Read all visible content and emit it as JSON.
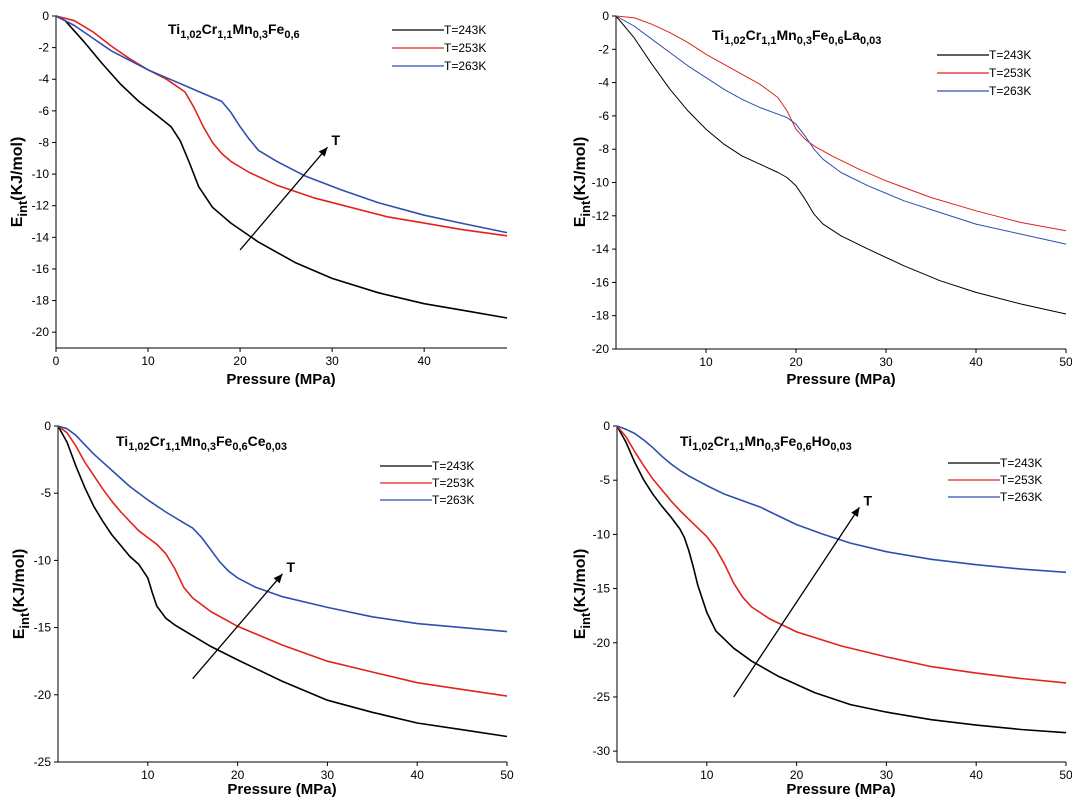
{
  "chart_data": [
    {
      "type": "line",
      "title_parts": [
        {
          "t": "Ti"
        },
        {
          "t": "1,02",
          "sub": true
        },
        {
          "t": "Cr"
        },
        {
          "t": "1,1",
          "sub": true
        },
        {
          "t": "Mn"
        },
        {
          "t": "0,3",
          "sub": true
        },
        {
          "t": "Fe"
        },
        {
          "t": "0,6",
          "sub": true
        }
      ],
      "xlabel": "Pressure (MPa)",
      "ylabel_main": "E",
      "ylabel_sub": "int",
      "ylabel_tail": "(KJ/mol)",
      "xlim": [
        0,
        49
      ],
      "ylim": [
        -21,
        0
      ],
      "xticks": [
        0,
        10,
        20,
        30,
        40
      ],
      "yticks": [
        0,
        -2,
        -4,
        -6,
        -8,
        -10,
        -12,
        -14,
        -16,
        -18,
        -20
      ],
      "arrow": {
        "from": [
          20,
          -14.8
        ],
        "to": [
          29.5,
          -8.3
        ],
        "label": "T"
      },
      "series": [
        {
          "name": "T=243K",
          "color": "#000000",
          "x": [
            0,
            1,
            3,
            5,
            7,
            9,
            11,
            12.5,
            13.5,
            14.5,
            15.5,
            17,
            19,
            22,
            26,
            30,
            35,
            40,
            45,
            49
          ],
          "y": [
            0,
            -0.3,
            -1.6,
            -3.0,
            -4.3,
            -5.4,
            -6.3,
            -7.0,
            -7.9,
            -9.3,
            -10.8,
            -12.1,
            -13.1,
            -14.3,
            -15.6,
            -16.6,
            -17.5,
            -18.2,
            -18.7,
            -19.1
          ]
        },
        {
          "name": "T=253K",
          "color": "#e0241c",
          "x": [
            0,
            2,
            4,
            6,
            8,
            10,
            12,
            14,
            15,
            16,
            17,
            18,
            19,
            21,
            24,
            28,
            32,
            36,
            40,
            44,
            49
          ],
          "y": [
            0,
            -0.3,
            -1.0,
            -1.9,
            -2.7,
            -3.4,
            -4.0,
            -4.8,
            -5.8,
            -7.0,
            -8.0,
            -8.7,
            -9.2,
            -9.9,
            -10.7,
            -11.5,
            -12.1,
            -12.7,
            -13.1,
            -13.5,
            -13.9
          ]
        },
        {
          "name": "T=263K",
          "color": "#2e4fb0",
          "x": [
            0,
            2,
            4,
            6,
            8,
            10,
            12,
            14,
            16,
            18,
            19,
            20,
            21,
            22,
            24,
            27,
            31,
            35,
            40,
            44,
            49
          ],
          "y": [
            0,
            -0.6,
            -1.4,
            -2.2,
            -2.8,
            -3.4,
            -3.9,
            -4.4,
            -4.9,
            -5.4,
            -6.1,
            -7.0,
            -7.8,
            -8.5,
            -9.2,
            -10.1,
            -11.0,
            -11.8,
            -12.6,
            -13.1,
            -13.7
          ]
        }
      ]
    },
    {
      "type": "line",
      "title_parts": [
        {
          "t": "Ti"
        },
        {
          "t": "1,02",
          "sub": true
        },
        {
          "t": "Cr"
        },
        {
          "t": "1,1",
          "sub": true
        },
        {
          "t": "Mn"
        },
        {
          "t": "0,3",
          "sub": true
        },
        {
          "t": "Fe"
        },
        {
          "t": "0,6",
          "sub": true
        },
        {
          "t": "La"
        },
        {
          "t": "0,03",
          "sub": true
        }
      ],
      "xlabel": "Pressure (MPa)",
      "ylabel_main": "E",
      "ylabel_sub": "int",
      "ylabel_tail": "(KJ/mol)",
      "xlim": [
        0,
        50
      ],
      "ylim": [
        -20,
        0
      ],
      "xticks": [
        10,
        20,
        30,
        40,
        50
      ],
      "yticks": [
        0,
        -2,
        -4,
        -6,
        -8,
        -10,
        -12,
        -14,
        -16,
        -18,
        -20
      ],
      "series": [
        {
          "name": "T=243K",
          "color": "#000000",
          "x": [
            0,
            2,
            4,
            6,
            8,
            10,
            12,
            14,
            16,
            18,
            19,
            20,
            21,
            22,
            23,
            25,
            28,
            32,
            36,
            40,
            45,
            50
          ],
          "y": [
            0,
            -1.3,
            -2.9,
            -4.4,
            -5.7,
            -6.8,
            -7.7,
            -8.4,
            -8.9,
            -9.4,
            -9.7,
            -10.2,
            -11.0,
            -11.9,
            -12.5,
            -13.2,
            -14.0,
            -15.0,
            -15.9,
            -16.6,
            -17.3,
            -17.9
          ]
        },
        {
          "name": "T=253K",
          "color": "#e0241c",
          "x": [
            0,
            2,
            4,
            6,
            8,
            10,
            12,
            14,
            16,
            17,
            18,
            19,
            20,
            21,
            22,
            24,
            27,
            30,
            35,
            40,
            45,
            50
          ],
          "y": [
            0,
            -0.1,
            -0.5,
            -1.0,
            -1.6,
            -2.3,
            -2.9,
            -3.5,
            -4.1,
            -4.5,
            -4.9,
            -5.7,
            -6.8,
            -7.4,
            -7.8,
            -8.4,
            -9.2,
            -9.9,
            -10.9,
            -11.7,
            -12.4,
            -12.9
          ]
        },
        {
          "name": "T=263K",
          "color": "#2e4fb0",
          "x": [
            0,
            2,
            4,
            6,
            8,
            10,
            12,
            14,
            16,
            18,
            19,
            20,
            21,
            22,
            23,
            25,
            28,
            32,
            36,
            40,
            45,
            50
          ],
          "y": [
            0,
            -0.6,
            -1.4,
            -2.2,
            -3.0,
            -3.7,
            -4.4,
            -5.0,
            -5.5,
            -5.9,
            -6.1,
            -6.5,
            -7.2,
            -8.0,
            -8.6,
            -9.4,
            -10.2,
            -11.1,
            -11.8,
            -12.5,
            -13.1,
            -13.7
          ]
        }
      ]
    },
    {
      "type": "line",
      "title_parts": [
        {
          "t": "Ti"
        },
        {
          "t": "1,02",
          "sub": true
        },
        {
          "t": "Cr"
        },
        {
          "t": "1,1",
          "sub": true
        },
        {
          "t": "Mn"
        },
        {
          "t": "0,3",
          "sub": true
        },
        {
          "t": "Fe"
        },
        {
          "t": "0,6",
          "sub": true
        },
        {
          "t": "Ce"
        },
        {
          "t": "0,03",
          "sub": true
        }
      ],
      "xlabel": "Pressure (MPa)",
      "ylabel_main": "E",
      "ylabel_sub": "int",
      "ylabel_tail": "(KJ/mol)",
      "xlim": [
        0,
        50
      ],
      "ylim": [
        -25,
        0
      ],
      "xticks": [
        10,
        20,
        30,
        40,
        50
      ],
      "yticks": [
        0,
        -5,
        -10,
        -15,
        -20,
        -25
      ],
      "arrow": {
        "from": [
          15,
          -18.8
        ],
        "to": [
          25,
          -11
        ],
        "label": "T"
      },
      "series": [
        {
          "name": "T=243K",
          "color": "#000000",
          "x": [
            0,
            1,
            2,
            3,
            4,
            5,
            6,
            7,
            8,
            9,
            9.5,
            10,
            10.5,
            11,
            12,
            13,
            15,
            17,
            20,
            25,
            30,
            35,
            40,
            45,
            50
          ],
          "y": [
            0,
            -1.2,
            -3.0,
            -4.6,
            -6.0,
            -7.1,
            -8.1,
            -8.9,
            -9.7,
            -10.3,
            -10.8,
            -11.3,
            -12.4,
            -13.4,
            -14.3,
            -14.8,
            -15.6,
            -16.4,
            -17.4,
            -19.0,
            -20.4,
            -21.3,
            -22.1,
            -22.6,
            -23.1
          ]
        },
        {
          "name": "T=253K",
          "color": "#e0241c",
          "x": [
            0,
            1,
            2,
            3,
            4,
            5,
            6,
            7,
            8,
            9,
            10,
            11,
            12,
            13,
            14,
            15,
            17,
            20,
            25,
            30,
            35,
            40,
            45,
            50
          ],
          "y": [
            0,
            -0.5,
            -1.5,
            -2.7,
            -3.7,
            -4.7,
            -5.6,
            -6.4,
            -7.1,
            -7.8,
            -8.3,
            -8.8,
            -9.5,
            -10.6,
            -12.0,
            -12.8,
            -13.8,
            -14.9,
            -16.3,
            -17.5,
            -18.3,
            -19.1,
            -19.6,
            -20.1
          ]
        },
        {
          "name": "T=263K",
          "color": "#2e4fb0",
          "x": [
            0,
            1,
            2,
            3,
            4,
            6,
            8,
            10,
            12,
            14,
            15,
            16,
            17,
            18,
            19,
            20,
            22,
            25,
            30,
            35,
            40,
            45,
            50
          ],
          "y": [
            0,
            -0.2,
            -0.7,
            -1.4,
            -2.1,
            -3.3,
            -4.5,
            -5.5,
            -6.4,
            -7.2,
            -7.6,
            -8.3,
            -9.2,
            -10.1,
            -10.8,
            -11.3,
            -12.0,
            -12.7,
            -13.5,
            -14.2,
            -14.7,
            -15.0,
            -15.3
          ]
        }
      ],
      "legend_names_only": true
    },
    {
      "type": "line",
      "title_parts": [
        {
          "t": "Ti"
        },
        {
          "t": "1,02",
          "sub": true
        },
        {
          "t": "Cr"
        },
        {
          "t": "1,1",
          "sub": true
        },
        {
          "t": "Mn"
        },
        {
          "t": "0,3",
          "sub": true
        },
        {
          "t": "Fe"
        },
        {
          "t": "0,6",
          "sub": true
        },
        {
          "t": "Ho"
        },
        {
          "t": "0,03",
          "sub": true
        }
      ],
      "xlabel": "Pressure (MPa)",
      "ylabel_main": "E",
      "ylabel_sub": "int",
      "ylabel_tail": "(KJ/mol)",
      "xlim": [
        0,
        50
      ],
      "ylim": [
        -31,
        0
      ],
      "xticks": [
        10,
        20,
        30,
        40,
        50
      ],
      "yticks": [
        0,
        -5,
        -10,
        -15,
        -20,
        -25,
        -30
      ],
      "arrow": {
        "from": [
          13,
          -25
        ],
        "to": [
          27,
          -7.5
        ],
        "label": "T"
      },
      "series": [
        {
          "name": "T=243K",
          "color": "#000000",
          "x": [
            0,
            1,
            2,
            3,
            4,
            5,
            6,
            7,
            7.5,
            8,
            8.5,
            9,
            10,
            11,
            13,
            15,
            18,
            22,
            26,
            30,
            35,
            40,
            45,
            50
          ],
          "y": [
            0,
            -1.5,
            -3.4,
            -5.0,
            -6.3,
            -7.4,
            -8.4,
            -9.5,
            -10.3,
            -11.5,
            -13.0,
            -14.7,
            -17.2,
            -18.9,
            -20.5,
            -21.7,
            -23.1,
            -24.6,
            -25.7,
            -26.4,
            -27.1,
            -27.6,
            -28.0,
            -28.3
          ]
        },
        {
          "name": "T=253K",
          "color": "#e0241c",
          "x": [
            0,
            1,
            2,
            3,
            4,
            5,
            6,
            7,
            8,
            9,
            10,
            11,
            12,
            13,
            14,
            15,
            17,
            20,
            25,
            30,
            35,
            40,
            45,
            50
          ],
          "y": [
            0,
            -1.0,
            -2.4,
            -3.7,
            -4.9,
            -5.9,
            -6.9,
            -7.8,
            -8.6,
            -9.4,
            -10.2,
            -11.3,
            -12.8,
            -14.5,
            -15.8,
            -16.7,
            -17.8,
            -19.0,
            -20.3,
            -21.3,
            -22.2,
            -22.8,
            -23.3,
            -23.7
          ]
        },
        {
          "name": "T=263K",
          "color": "#2e4fb0",
          "x": [
            0,
            1,
            2,
            3,
            4,
            5,
            6,
            7,
            8,
            10,
            12,
            14,
            15,
            16,
            18,
            20,
            23,
            26,
            30,
            35,
            40,
            45,
            50
          ],
          "y": [
            0,
            -0.3,
            -0.7,
            -1.3,
            -2.0,
            -2.8,
            -3.5,
            -4.1,
            -4.6,
            -5.5,
            -6.3,
            -6.9,
            -7.2,
            -7.5,
            -8.3,
            -9.1,
            -10.0,
            -10.8,
            -11.6,
            -12.3,
            -12.8,
            -13.2,
            -13.5
          ]
        }
      ]
    }
  ]
}
